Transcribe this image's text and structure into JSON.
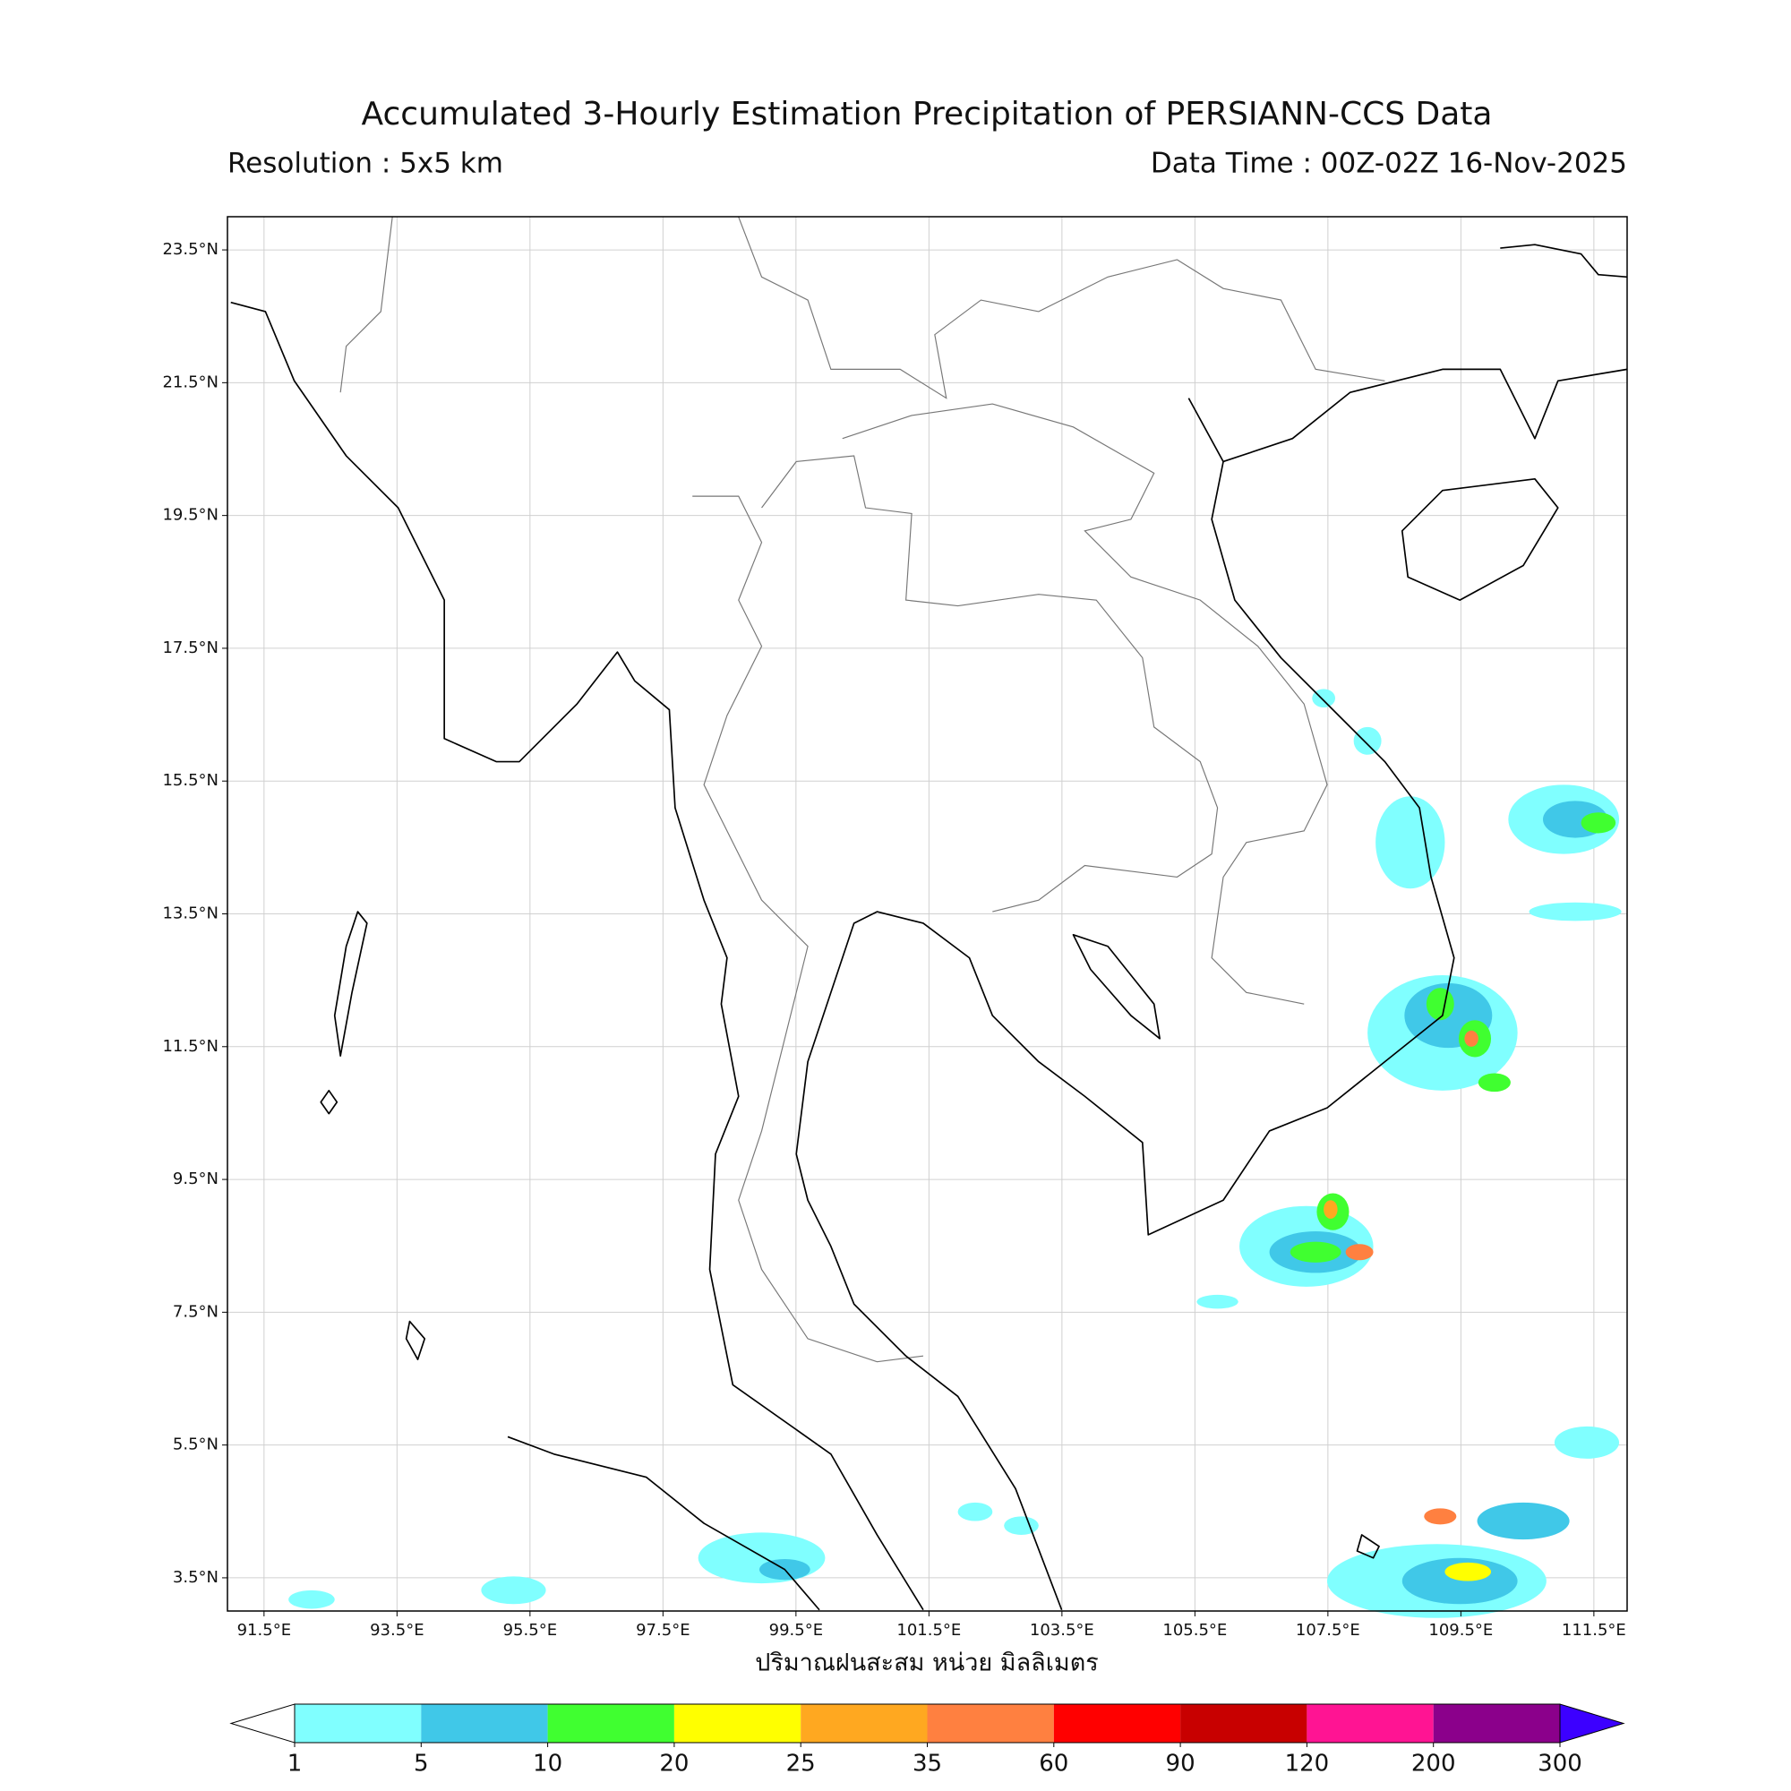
{
  "header": {
    "title": "Accumulated 3-Hourly Estimation Precipitation of PERSIANN-CCS Data",
    "resolution": "Resolution : 5x5 km",
    "data_time": "Data Time : 00Z-02Z 16-Nov-2025"
  },
  "map": {
    "lonlim": [
      90.95,
      112
    ],
    "latlim": [
      3,
      24
    ],
    "lon_ticks": [
      {
        "value": 91.5,
        "label": "91.5°E"
      },
      {
        "value": 93.5,
        "label": "93.5°E"
      },
      {
        "value": 95.5,
        "label": "95.5°E"
      },
      {
        "value": 97.5,
        "label": "97.5°E"
      },
      {
        "value": 99.5,
        "label": "99.5°E"
      },
      {
        "value": 101.5,
        "label": "101.5°E"
      },
      {
        "value": 103.5,
        "label": "103.5°E"
      },
      {
        "value": 105.5,
        "label": "105.5°E"
      },
      {
        "value": 107.5,
        "label": "107.5°E"
      },
      {
        "value": 109.5,
        "label": "109.5°E"
      },
      {
        "value": 111.5,
        "label": "111.5°E"
      }
    ],
    "lat_ticks": [
      {
        "value": 23.5,
        "label": "23.5°N"
      },
      {
        "value": 21.5,
        "label": "21.5°N"
      },
      {
        "value": 19.5,
        "label": "19.5°N"
      },
      {
        "value": 17.5,
        "label": "17.5°N"
      },
      {
        "value": 15.5,
        "label": "15.5°N"
      },
      {
        "value": 13.5,
        "label": "13.5°N"
      },
      {
        "value": 11.5,
        "label": "11.5°N"
      },
      {
        "value": 9.5,
        "label": "9.5°N"
      },
      {
        "value": 7.5,
        "label": "7.5°N"
      },
      {
        "value": 5.5,
        "label": "5.5°N"
      },
      {
        "value": 3.5,
        "label": "3.5°N"
      }
    ],
    "xlabel": "ปริมาณฝนสะสม หน่วย มิลลิเมตร",
    "grid": true
  },
  "colorbar": {
    "levels": [
      1,
      5,
      10,
      20,
      25,
      35,
      60,
      90,
      120,
      200,
      300
    ],
    "colors": [
      "#80ffff",
      "#40c8e8",
      "#40ff30",
      "#ffff00",
      "#ffa820",
      "#ff8040",
      "#ff0000",
      "#c80000",
      "#ff1493",
      "#8b008b"
    ],
    "under_color": "#ffffff",
    "over_color": "#3c00ff"
  }
}
